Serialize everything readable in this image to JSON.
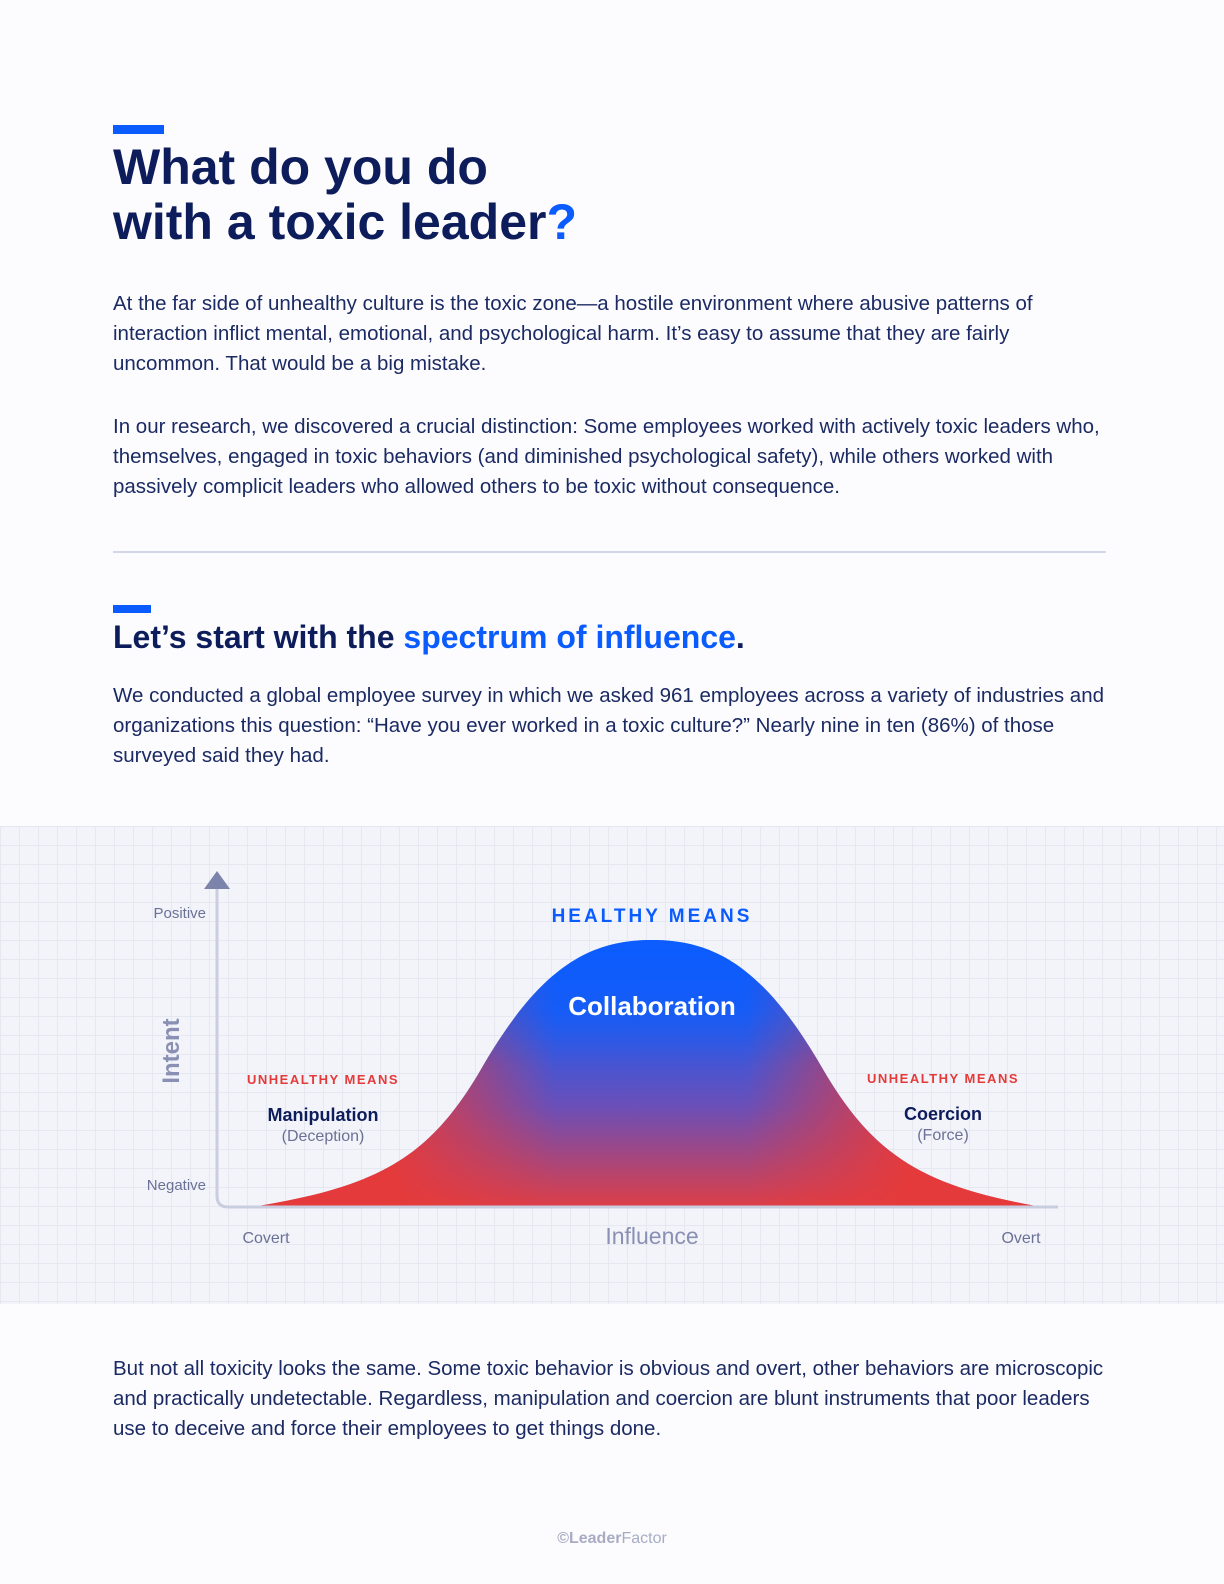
{
  "header": {
    "title_line1": "What do you do",
    "title_line2": "with a toxic leader",
    "title_mark": "?"
  },
  "intro": {
    "paragraph1": "At the far side of unhealthy culture is the toxic zone—a hostile environment where abusive patterns of interaction inflict mental, emotional, and psychological harm. It’s easy to assume that they are fairly uncommon. That would be a big mistake.",
    "paragraph2": "In our research, we discovered a crucial distinction: Some employees worked with actively toxic leaders who, themselves, engaged in toxic behaviors (and diminished psychological safety), while others worked with passively complicit leaders who allowed others to be toxic without consequence."
  },
  "section": {
    "title_prefix": "Let’s start with the ",
    "title_highlight": "spectrum of influence",
    "title_suffix": ".",
    "paragraph": "We conducted a global employee survey in which we asked 961 employees across a variety of industries and organizations this question: “Have you ever worked in a toxic culture?” Nearly nine in ten (86%) of those surveyed said they had."
  },
  "diagram": {
    "y_axis_label": "Intent",
    "y_top_label": "Positive",
    "y_bottom_label": "Negative",
    "x_axis_label": "Influence",
    "x_left_label": "Covert",
    "x_right_label": "Overt",
    "center_heading": "HEALTHY MEANS",
    "center_label": "Collaboration",
    "left_heading": "UNHEALTHY MEANS",
    "left_label": "Manipulation",
    "left_sub": "(Deception)",
    "right_heading": "UNHEALTHY MEANS",
    "right_label": "Coercion",
    "right_sub": "(Force)",
    "colors": {
      "healthy": "#0a5cff",
      "unhealthy": "#e53a3a",
      "axis": "#8a90b3"
    }
  },
  "closing": {
    "paragraph": "But not all toxicity looks the same. Some toxic behavior is obvious and overt, other behaviors are microscopic and practically undetectable. Regardless, manipulation and coercion are blunt instruments that poor leaders use to deceive and force their employees to get things done."
  },
  "footer": {
    "brand_bold": "©Leader",
    "brand_light": "Factor"
  }
}
